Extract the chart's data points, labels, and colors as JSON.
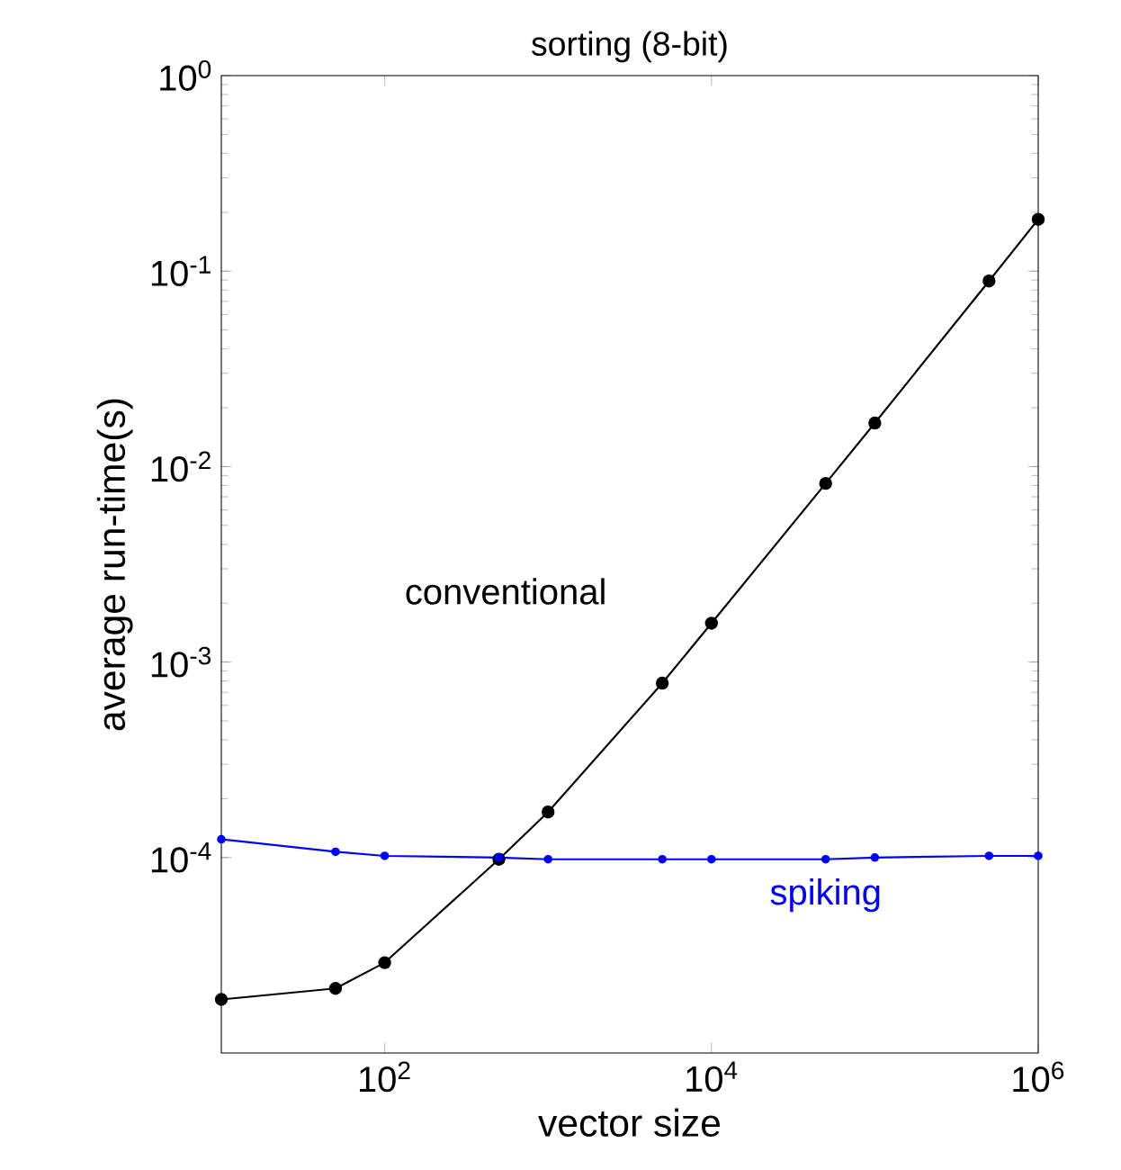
{
  "chart_data": {
    "type": "line",
    "title": "sorting (8-bit)",
    "xlabel": "vector size",
    "ylabel": "average run-time(s)",
    "log": "xy",
    "xlim": [
      10,
      1000000
    ],
    "ylim": [
      1e-05,
      1
    ],
    "xticks": [
      {
        "value": 100,
        "label": "10$^{2}$"
      },
      {
        "value": 10000,
        "label": "10$^{4}$"
      },
      {
        "value": 1000000,
        "label": "10$^{6}$"
      }
    ],
    "yticks": [
      {
        "value": 0.0001,
        "label": "10$^{-4}$"
      },
      {
        "value": 0.001,
        "label": "10$^{-3}$"
      },
      {
        "value": 0.01,
        "label": "10$^{-2}$"
      },
      {
        "value": 0.1,
        "label": "10$^{-1}$"
      },
      {
        "value": 1,
        "label": "10$^{0}$"
      }
    ],
    "x": [
      10,
      50,
      100,
      500,
      1000,
      5000,
      10000,
      50000,
      100000,
      500000,
      1000000
    ],
    "marker": "circle",
    "line_style": "solid",
    "legend": false,
    "grid": false,
    "series": [
      {
        "name": "conventional",
        "color": "#000000",
        "values": [
          1.88e-05,
          2.14e-05,
          2.9e-05,
          9.8e-05,
          0.000171,
          0.00078,
          0.00158,
          0.0082,
          0.0167,
          0.089,
          0.184
        ]
      },
      {
        "name": "spiking",
        "color": "#0000ff",
        "values": [
          0.000124,
          0.000107,
          0.000102,
          0.0001,
          9.8e-05,
          9.8e-05,
          9.8e-05,
          9.8e-05,
          0.0001,
          0.000102,
          0.000102
        ]
      }
    ]
  }
}
